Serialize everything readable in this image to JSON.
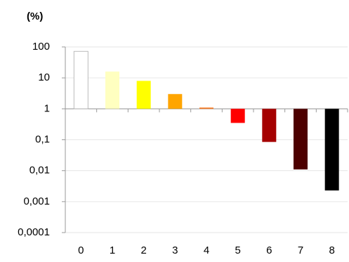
{
  "chart_data": {
    "type": "bar",
    "title": "(%)",
    "categories": [
      "0",
      "1",
      "2",
      "3",
      "4",
      "5",
      "6",
      "7",
      "8"
    ],
    "values": [
      72,
      16,
      8,
      3,
      1.1,
      0.35,
      0.085,
      0.011,
      0.0023
    ],
    "colors": [
      "#ffffff",
      "#ffffc0",
      "#ffff00",
      "#ffa500",
      "#ff7f27",
      "#ff0000",
      "#a50000",
      "#4d0000",
      "#000000"
    ],
    "log_scale": true,
    "baseline": 1,
    "ylim": [
      0.0001,
      100
    ],
    "yticks": [
      100,
      10,
      1,
      {
        "value": 0.1,
        "label": "0,1"
      },
      {
        "value": 0.01,
        "label": "0,01"
      },
      {
        "value": 0.001,
        "label": "0,001"
      },
      {
        "value": 0.0001,
        "label": "0,0001"
      }
    ],
    "grid": true
  }
}
